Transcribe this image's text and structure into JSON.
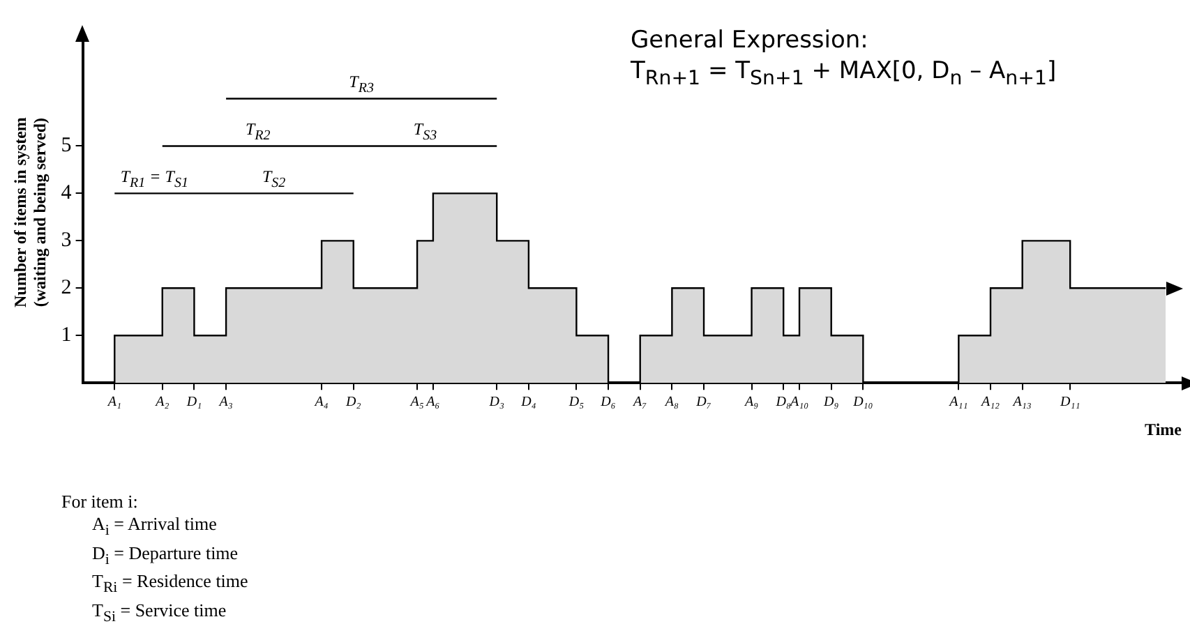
{
  "chart_data": {
    "type": "step",
    "xlabel": "Time",
    "ylabel": "Number of items in system\n(waiting and being served)",
    "ylim": [
      0,
      7.2
    ],
    "yticks": [
      1,
      2,
      3,
      4,
      5
    ],
    "grid": false,
    "categories": [
      null,
      null,
      "A₁",
      null,
      null,
      "A₂",
      null,
      "D₁",
      null,
      "A₃",
      null,
      null,
      null,
      null,
      null,
      "A₄",
      null,
      "D₂",
      null,
      null,
      null,
      "A₅",
      "A₆",
      null,
      null,
      null,
      "D₃",
      null,
      "D₄",
      null,
      null,
      "D₅",
      null,
      "D₆",
      null,
      "A₇",
      null,
      "A₈",
      null,
      "D₇",
      null,
      null,
      "A₉",
      null,
      "D₈",
      "A₁₀",
      null,
      "D₉",
      null,
      "D₁₀",
      null,
      null,
      null,
      null,
      null,
      "A₁₁",
      null,
      "A₁₂",
      null,
      "A₁₃",
      null,
      null,
      "D₁₁",
      null,
      null,
      null,
      null,
      null,
      null
    ],
    "series": [
      {
        "type": "area",
        "color": "#d9d9d9",
        "values": [
          0,
          0,
          1,
          1,
          1,
          2,
          2,
          1,
          1,
          2,
          2,
          2,
          2,
          2,
          2,
          3,
          3,
          2,
          2,
          2,
          2,
          3,
          4,
          4,
          4,
          4,
          3,
          3,
          2,
          2,
          2,
          1,
          1,
          0,
          0,
          1,
          1,
          2,
          2,
          1,
          1,
          1,
          2,
          2,
          1,
          2,
          2,
          1,
          1,
          0,
          0,
          0,
          0,
          0,
          0,
          1,
          1,
          2,
          2,
          3,
          3,
          3,
          2,
          2,
          2,
          2,
          2,
          2,
          2
        ]
      },
      {
        "type": "line",
        "color": "#000000",
        "x": [
          "A₃",
          "D₃"
        ],
        "values": [
          6,
          6
        ]
      },
      {
        "type": "line",
        "color": "#000000",
        "x": [
          "A₂",
          "D₂",
          "D₃"
        ],
        "values": [
          5,
          5,
          5
        ]
      },
      {
        "type": "line",
        "color": "#000000",
        "x": [
          "A₁",
          "D₁",
          "D₂"
        ],
        "values": [
          4,
          4,
          4
        ]
      }
    ],
    "annotations": [
      {
        "text": "T$_{R3}$",
        "y": 6
      },
      {
        "text": "T$_{R2}$",
        "y": 5
      },
      {
        "text": "T$_{S3}$",
        "y": 5
      },
      {
        "text": "T$_{R1}$ = T$_{S1}$",
        "y": 4
      },
      {
        "text": "T$_{S2}$",
        "y": 4
      },
      "General Expression:",
      "T$_{Rn+1}$ = T$_{Sn+1}$ + MAX[0, D$_{n}$ – A$_{n+1}$]",
      "For item i:",
      "A$_{i}$ = Arrival time",
      "D$_{i}$ = Departure time",
      "T$_{Ri}$ = Residence time",
      "T$_{Si}$ = Service time"
    ]
  }
}
